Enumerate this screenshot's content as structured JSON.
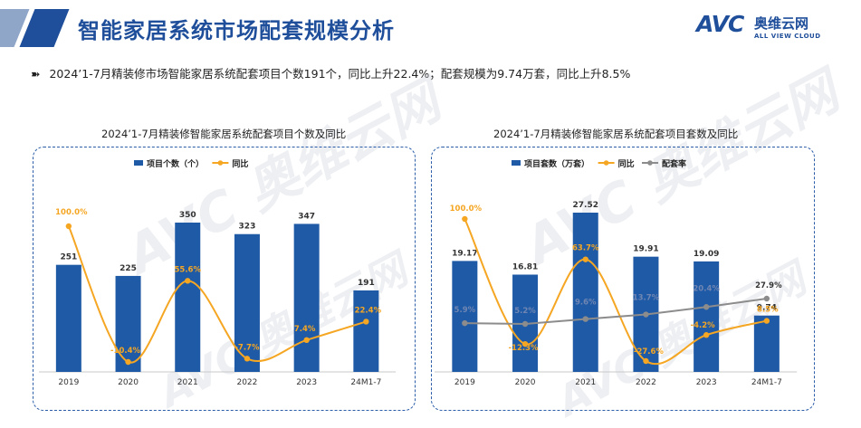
{
  "header": {
    "title": "智能家居系统市场配套规模分析",
    "logo": {
      "brand": "AVC",
      "cn": "奥维云网",
      "en": "ALL VIEW CLOUD"
    }
  },
  "summary": {
    "bullet": "➽",
    "text": "2024’1-7月精装修市场智能家居系统配套项目个数191个，同比上升22.4%；配套规模为9.74万套，同比上升8.5%"
  },
  "watermark": "AVC 奥维云网",
  "colors": {
    "bar": "#1f5aa6",
    "yoy": "#f5a623",
    "rate": "#8c8c8c",
    "title": "#1f4e9a"
  },
  "chart_data": [
    {
      "type": "bar",
      "title": "2024’1-7月精装修智能家居系统配套项目个数及同比",
      "categories": [
        "2019",
        "2020",
        "2021",
        "2022",
        "2023",
        "24M1-7"
      ],
      "series": [
        {
          "name": "项目个数（个）",
          "type": "bar",
          "values": [
            251,
            225,
            350,
            323,
            347,
            191
          ],
          "labels": [
            "251",
            "225",
            "350",
            "323",
            "347",
            "191"
          ]
        },
        {
          "name": "同比",
          "type": "line",
          "smooth": true,
          "values": [
            100.0,
            -10.4,
            55.6,
            -7.7,
            7.4,
            22.4
          ],
          "labels": [
            "100.0%",
            "-10.4%",
            "55.6%",
            "-7.7%",
            "7.4%",
            "22.4%"
          ]
        }
      ],
      "legend": "top"
    },
    {
      "type": "bar",
      "title": "2024’1-7月精装修智能家居系统配套项目套数及同比",
      "categories": [
        "2019",
        "2020",
        "2021",
        "2022",
        "2023",
        "24M1-7"
      ],
      "series": [
        {
          "name": "项目套数（万套）",
          "type": "bar",
          "values": [
            19.17,
            16.81,
            27.52,
            19.91,
            19.09,
            9.74
          ],
          "labels": [
            "19.17",
            "16.81",
            "27.52",
            "19.91",
            "19.09",
            "9.74"
          ]
        },
        {
          "name": "同比",
          "type": "line",
          "smooth": true,
          "values": [
            100.0,
            -12.3,
            63.7,
            -27.6,
            -4.2,
            8.5
          ],
          "labels": [
            "100.0%",
            "-12.3%",
            "63.7%",
            "-27.6%",
            "-4.2%",
            "8.5%"
          ]
        },
        {
          "name": "配套率",
          "type": "line",
          "smooth": false,
          "values": [
            5.9,
            5.2,
            9.6,
            13.7,
            20.4,
            27.9
          ],
          "labels": [
            "5.9%",
            "5.2%",
            "9.6%",
            "13.7%",
            "20.4%",
            "27.9%"
          ]
        }
      ],
      "legend": "top"
    }
  ]
}
